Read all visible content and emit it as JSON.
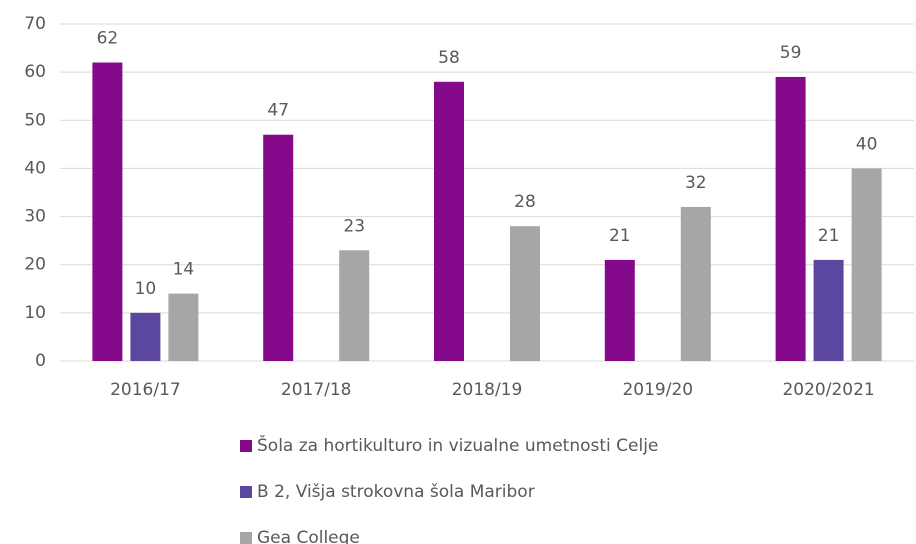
{
  "chart_data": {
    "type": "bar",
    "categories": [
      "2016/17",
      "2017/18",
      "2018/19",
      "2019/20",
      "2020/2021"
    ],
    "series": [
      {
        "name": "Šola za hortikulturo in vizualne umetnosti Celje",
        "color": "#850a8b",
        "values": [
          62,
          47,
          58,
          21,
          59
        ]
      },
      {
        "name": "B 2, Višja strokovna šola Maribor",
        "color": "#5b47a0",
        "values": [
          10,
          null,
          null,
          null,
          21
        ]
      },
      {
        "name": "Gea College",
        "color": "#a6a6a6",
        "values": [
          14,
          23,
          28,
          32,
          40
        ]
      }
    ],
    "ylim": [
      0,
      70
    ],
    "yticks": [
      0,
      10,
      20,
      30,
      40,
      50,
      60,
      70
    ],
    "grid": true,
    "legend": "bottom"
  }
}
